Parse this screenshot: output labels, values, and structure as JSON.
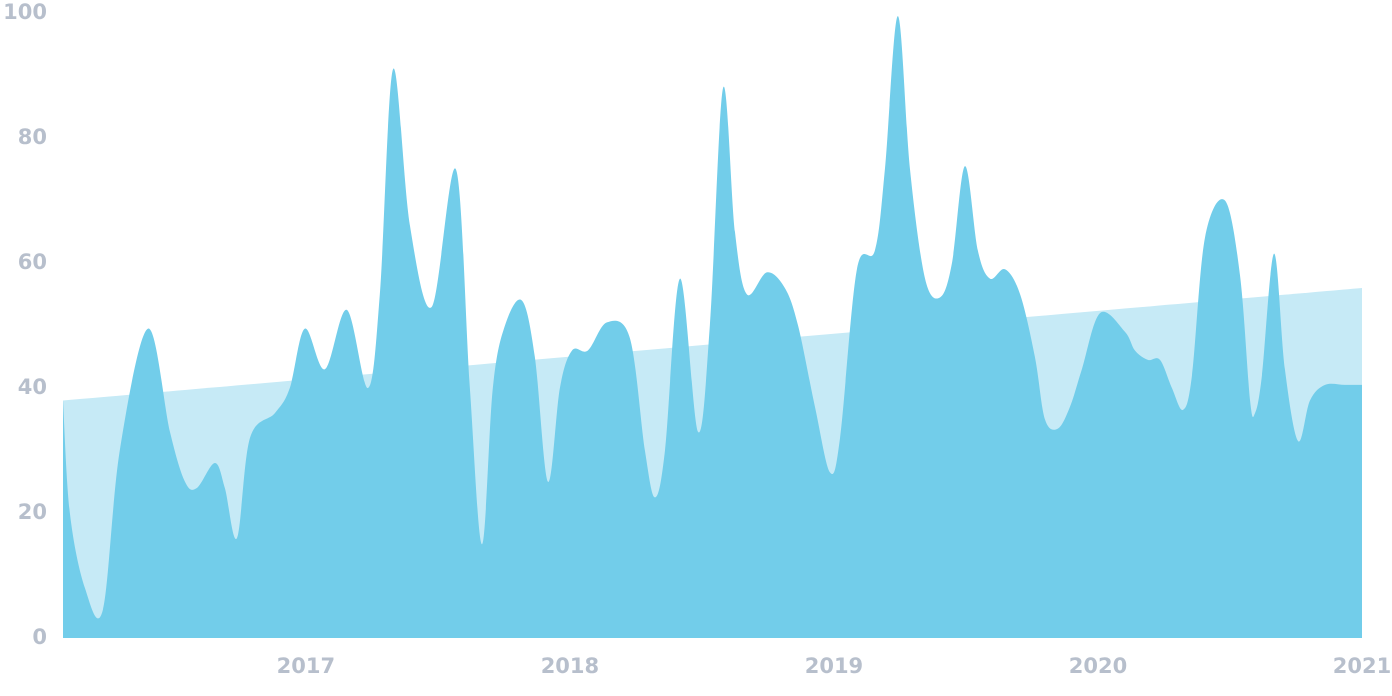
{
  "chart_data": {
    "type": "area",
    "xlim": [
      2016.08,
      2021
    ],
    "xticks": [
      2017,
      2018,
      2019,
      2020,
      2021
    ],
    "ylim": [
      0,
      100
    ],
    "yticks": [
      0,
      20,
      40,
      60,
      80,
      100
    ],
    "series": [
      {
        "color": "#c6eaf6",
        "x": [
          2016.08,
          2021
        ],
        "values": [
          38,
          56
        ]
      },
      {
        "color": "#72cdea",
        "x": [
          2016.08,
          2016.106,
          2016.163,
          2016.231,
          2016.295,
          2016.402,
          2016.485,
          2016.542,
          2016.587,
          2016.655,
          2016.693,
          2016.739,
          2016.788,
          2016.883,
          2016.939,
          2016.996,
          2017.072,
          2017.155,
          2017.235,
          2017.28,
          2017.33,
          2017.394,
          2017.477,
          2017.568,
          2017.621,
          2017.667,
          2017.708,
          2017.754,
          2017.818,
          2017.867,
          2017.917,
          2017.962,
          2018.008,
          2018.068,
          2018.14,
          2018.227,
          2018.284,
          2018.322,
          2018.36,
          2018.417,
          2018.485,
          2018.53,
          2018.58,
          2018.625,
          2018.67,
          2018.746,
          2018.814,
          2018.864,
          2018.928,
          2018.985,
          2019.023,
          2019.087,
          2019.155,
          2019.193,
          2019.242,
          2019.288,
          2019.345,
          2019.402,
          2019.447,
          2019.496,
          2019.545,
          2019.591,
          2019.648,
          2019.705,
          2019.761,
          2019.799,
          2019.848,
          2019.894,
          2019.939,
          2020.008,
          2020.102,
          2020.14,
          2020.189,
          2020.235,
          2020.28,
          2020.322,
          2020.356,
          2020.405,
          2020.481,
          2020.538,
          2020.576,
          2020.595,
          2020.621,
          2020.667,
          2020.708,
          2020.758,
          2020.803,
          2020.86,
          2020.936,
          2021
        ],
        "values": [
          38,
          20,
          8,
          4.5,
          30,
          49.5,
          33,
          25,
          24,
          28,
          24,
          16,
          32,
          36,
          40,
          49.5,
          43,
          52.5,
          40,
          55,
          91,
          66,
          53,
          75,
          40,
          15,
          40,
          50,
          54,
          45,
          25,
          40,
          46,
          46,
          50.5,
          48,
          30,
          22.5,
          30,
          57.5,
          33,
          50,
          88,
          65,
          55,
          58.5,
          56,
          50,
          37,
          26.5,
          32,
          59,
          62,
          75,
          99.5,
          75,
          57.5,
          54.5,
          60,
          75.5,
          62,
          57.5,
          59,
          55,
          45,
          35,
          33.5,
          37,
          43,
          52,
          49,
          46,
          44.5,
          44.5,
          40,
          36.5,
          42,
          64,
          70,
          58,
          38,
          36,
          42,
          61.5,
          43,
          31.5,
          38,
          40.5,
          40.5,
          40.5
        ]
      }
    ]
  }
}
